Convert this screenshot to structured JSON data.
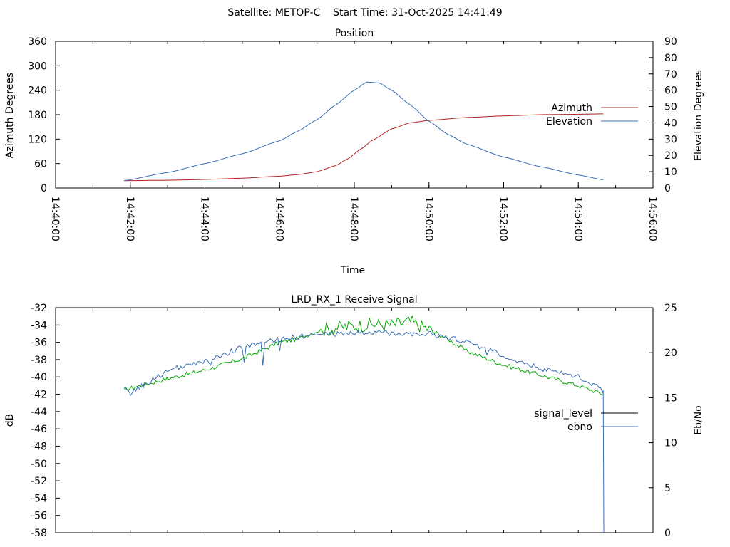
{
  "header": {
    "title": "Satellite: METOP-C    Start Time: 31-Oct-2025 14:41:49"
  },
  "colors": {
    "azimuth": "#b22222",
    "elevation": "#3b6eb5",
    "signal_level": "#00a600",
    "ebno": "#3b6eb5",
    "signal_legend": "#000000"
  },
  "chart_data": [
    {
      "type": "line",
      "title": "Position",
      "xlabel": "Time",
      "ylabel": "Azimuth Degrees",
      "y2label": "Elevation Degrees",
      "xlim": [
        "14:40:00",
        "14:56:00"
      ],
      "x_ticks": [
        "14:40:00",
        "14:42:00",
        "14:44:00",
        "14:46:00",
        "14:48:00",
        "14:50:00",
        "14:52:00",
        "14:54:00",
        "14:56:00"
      ],
      "ylim": [
        0,
        360
      ],
      "y_ticks": [
        "0",
        "60",
        "120",
        "180",
        "240",
        "300",
        "360"
      ],
      "y2lim": [
        0,
        90
      ],
      "y2_ticks": [
        "0",
        "10",
        "20",
        "30",
        "40",
        "50",
        "60",
        "70",
        "80",
        "90"
      ],
      "legend_position": "right",
      "series": [
        {
          "name": "Azimuth",
          "axis": "y",
          "x": [
            "14:41:50",
            "14:43:00",
            "14:44:00",
            "14:45:00",
            "14:46:00",
            "14:46:30",
            "14:47:00",
            "14:47:30",
            "14:47:50",
            "14:48:10",
            "14:48:30",
            "14:49:00",
            "14:49:30",
            "14:50:00",
            "14:51:00",
            "14:52:00",
            "14:53:00",
            "14:54:00",
            "14:54:40"
          ],
          "values": [
            18,
            19,
            21,
            24,
            29,
            33,
            40,
            55,
            72,
            95,
            118,
            145,
            160,
            166,
            173,
            177,
            180,
            181,
            182
          ]
        },
        {
          "name": "Elevation",
          "axis": "y2",
          "x": [
            "14:41:50",
            "14:43:00",
            "14:44:00",
            "14:45:00",
            "14:46:00",
            "14:46:30",
            "14:47:00",
            "14:47:30",
            "14:48:00",
            "14:48:20",
            "14:48:40",
            "14:49:00",
            "14:49:30",
            "14:50:00",
            "14:50:30",
            "14:51:00",
            "14:52:00",
            "14:53:00",
            "14:54:00",
            "14:54:40"
          ],
          "values": [
            4.5,
            9.5,
            15,
            21,
            29,
            35,
            42,
            51,
            60,
            65,
            64.5,
            60,
            51,
            41,
            33,
            27,
            19,
            13,
            8,
            5
          ]
        }
      ]
    },
    {
      "type": "line",
      "title": "LRD_RX_1 Receive Signal",
      "xlabel": "",
      "ylabel": "dB",
      "y2label": "Eb/No",
      "xlim": [
        "14:40:00",
        "14:56:00"
      ],
      "ylim": [
        -58,
        -32
      ],
      "y_ticks": [
        "-32",
        "-34",
        "-36",
        "-38",
        "-40",
        "-42",
        "-44",
        "-46",
        "-48",
        "-50",
        "-52",
        "-54",
        "-56",
        "-58"
      ],
      "y2lim": [
        0,
        25
      ],
      "y2_ticks": [
        "0",
        "5",
        "10",
        "15",
        "20",
        "25"
      ],
      "legend_position": "right",
      "series": [
        {
          "name": "signal_level",
          "axis": "y",
          "x": [
            "14:41:50",
            "14:43:00",
            "14:44:00",
            "14:45:00",
            "14:46:00",
            "14:46:30",
            "14:47:00",
            "14:47:30",
            "14:48:00",
            "14:48:30",
            "14:49:00",
            "14:49:30",
            "14:50:00",
            "14:50:30",
            "14:51:00",
            "14:52:00",
            "14:53:00",
            "14:54:00",
            "14:54:40"
          ],
          "values": [
            -41.5,
            -40.2,
            -39.2,
            -37.9,
            -36.0,
            -35.6,
            -34.7,
            -34.3,
            -34.1,
            -33.9,
            -34.0,
            -33.6,
            -34.5,
            -35.6,
            -37.0,
            -38.6,
            -39.8,
            -41.0,
            -42.0
          ]
        },
        {
          "name": "ebno",
          "axis": "y2",
          "x": [
            "14:41:50",
            "14:42:00",
            "14:43:00",
            "14:44:00",
            "14:45:00",
            "14:46:00",
            "14:47:00",
            "14:48:00",
            "14:49:00",
            "14:50:00",
            "14:51:00",
            "14:52:00",
            "14:53:00",
            "14:54:00",
            "14:54:40",
            "14:54:41"
          ],
          "values": [
            15.8,
            15.5,
            18.0,
            19.0,
            20.6,
            21.5,
            22.0,
            22.2,
            22.2,
            22.1,
            21.2,
            19.7,
            18.2,
            17.4,
            15.8,
            0
          ]
        }
      ]
    }
  ]
}
